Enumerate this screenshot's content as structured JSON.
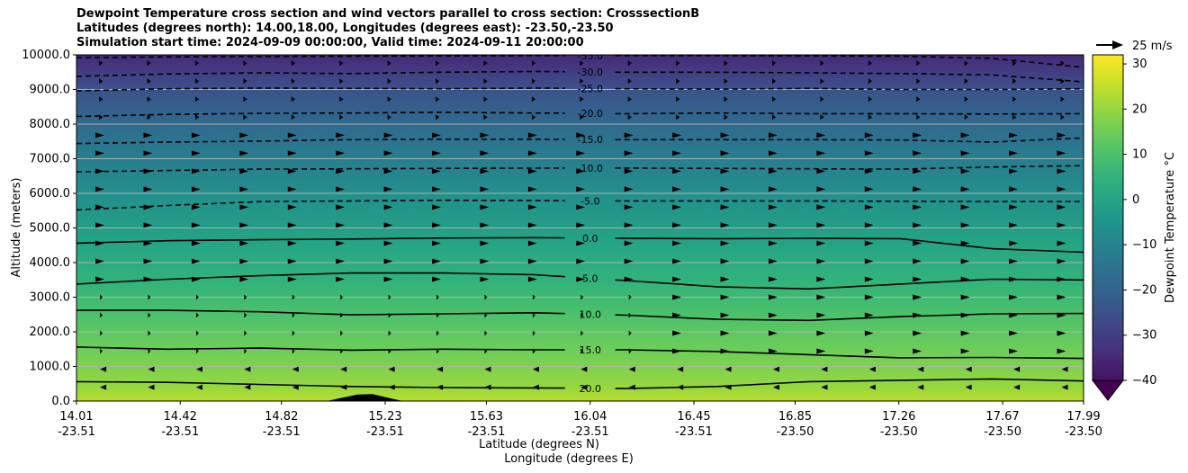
{
  "chart_data": {
    "type": "contour",
    "title": "Dewpoint Temperature cross section and wind vectors parallel to cross section: CrosssectionB",
    "subtitle_1": "Latitudes (degrees north): 14.00,18.00, Longitudes (degrees east): -23.50,-23.50",
    "subtitle_2": "Simulation start time: 2024-09-09 00:00:00, Valid time: 2024-09-11 20:00:00",
    "ylabel": "Altitude (meters)",
    "xlabel_1": "Latitude (degrees N)",
    "xlabel_2": "Longitude (degrees E)",
    "ylim": [
      0,
      10000
    ],
    "xlim": [
      14.01,
      17.99
    ],
    "y_ticks": [
      "0.0",
      "1000.0",
      "2000.0",
      "3000.0",
      "4000.0",
      "5000.0",
      "6000.0",
      "7000.0",
      "8000.0",
      "9000.0",
      "10000.0"
    ],
    "x_ticks": [
      {
        "lat": "14.01",
        "lon": "-23.51"
      },
      {
        "lat": "14.42",
        "lon": "-23.51"
      },
      {
        "lat": "14.82",
        "lon": "-23.51"
      },
      {
        "lat": "15.23",
        "lon": "-23.51"
      },
      {
        "lat": "15.63",
        "lon": "-23.51"
      },
      {
        "lat": "16.04",
        "lon": "-23.51"
      },
      {
        "lat": "16.45",
        "lon": "-23.51"
      },
      {
        "lat": "16.85",
        "lon": "-23.50"
      },
      {
        "lat": "17.26",
        "lon": "-23.50"
      },
      {
        "lat": "17.67",
        "lon": "-23.50"
      },
      {
        "lat": "17.99",
        "lon": "-23.50"
      }
    ],
    "grid": true,
    "colormap": "viridis",
    "colorbar": {
      "label": "Dewpoint Temperature °C",
      "min": -44,
      "max": 32,
      "ticks": [
        "30",
        "20",
        "10",
        "0",
        "−10",
        "−20",
        "−30",
        "−40"
      ],
      "tick_values": [
        30,
        20,
        10,
        0,
        -10,
        -20,
        -30,
        -40
      ]
    },
    "quiver_key": "25 m/s",
    "contours": [
      {
        "level": "20.0",
        "dashed": false,
        "alt": [
          560,
          540,
          480,
          420,
          390,
          380,
          360,
          420,
          560,
          600,
          640,
          580
        ]
      },
      {
        "level": "15.0",
        "dashed": false,
        "alt": [
          1560,
          1500,
          1530,
          1470,
          1500,
          1480,
          1480,
          1430,
          1340,
          1250,
          1260,
          1230
        ]
      },
      {
        "level": "10.0",
        "dashed": false,
        "alt": [
          2620,
          2620,
          2580,
          2490,
          2520,
          2550,
          2480,
          2360,
          2330,
          2440,
          2520,
          2530
        ]
      },
      {
        "level": "5.0",
        "dashed": false,
        "alt": [
          3380,
          3520,
          3620,
          3700,
          3700,
          3650,
          3480,
          3300,
          3240,
          3380,
          3520,
          3500
        ]
      },
      {
        "level": "0.0",
        "dashed": false,
        "alt": [
          4560,
          4630,
          4660,
          4680,
          4710,
          4720,
          4700,
          4690,
          4700,
          4690,
          4400,
          4300
        ]
      },
      {
        "level": "-5.0",
        "dashed": true,
        "alt": [
          5520,
          5650,
          5760,
          5780,
          5800,
          5790,
          5780,
          5780,
          5780,
          5770,
          5760,
          5760
        ]
      },
      {
        "level": "-10.0",
        "dashed": true,
        "alt": [
          6620,
          6660,
          6700,
          6710,
          6720,
          6730,
          6730,
          6720,
          6710,
          6700,
          6760,
          6800
        ]
      },
      {
        "level": "-15.0",
        "dashed": true,
        "alt": [
          7440,
          7480,
          7510,
          7550,
          7560,
          7560,
          7550,
          7550,
          7550,
          7540,
          7480,
          7600
        ]
      },
      {
        "level": "-20.0",
        "dashed": true,
        "alt": [
          8220,
          8280,
          8310,
          8320,
          8340,
          8320,
          8300,
          8320,
          8300,
          8300,
          8290,
          8300
        ]
      },
      {
        "level": "-25.0",
        "dashed": true,
        "alt": [
          8960,
          9020,
          9040,
          9030,
          9020,
          9040,
          9020,
          9010,
          9030,
          9000,
          9000,
          9020
        ]
      },
      {
        "level": "-30.0",
        "dashed": true,
        "alt": [
          9380,
          9450,
          9480,
          9460,
          9500,
          9520,
          9500,
          9500,
          9480,
          9460,
          9420,
          9220
        ]
      },
      {
        "level": "-35.0",
        "dashed": true,
        "alt": [
          9920,
          9940,
          9950,
          9960,
          9970,
          9980,
          9980,
          9980,
          9970,
          9960,
          9900,
          9640
        ]
      }
    ],
    "contour_label_x": 16.04,
    "terrain": {
      "x": [
        15.0,
        15.05,
        15.12,
        15.18,
        15.25,
        15.3
      ],
      "alt": [
        0,
        80,
        190,
        200,
        80,
        0
      ]
    }
  }
}
